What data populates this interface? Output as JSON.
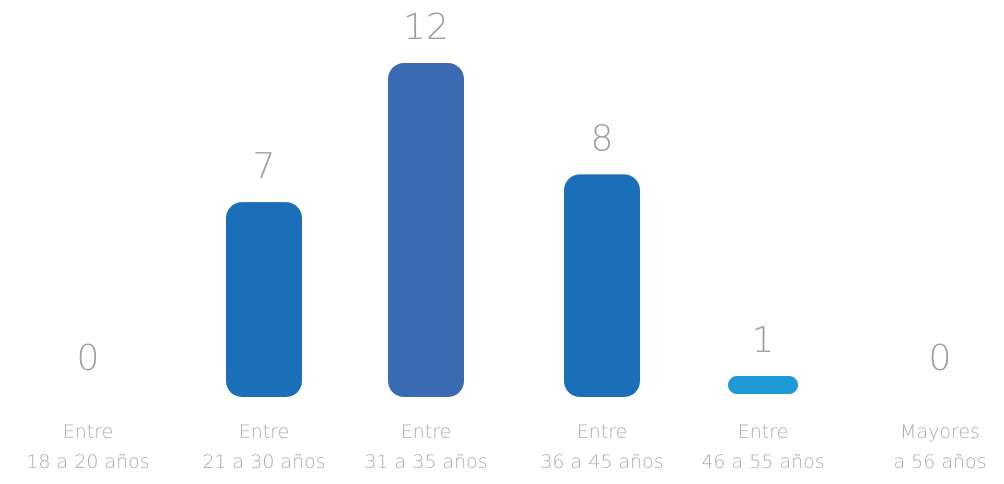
{
  "chart_data": {
    "type": "bar",
    "title": "",
    "xlabel": "",
    "ylabel": "",
    "ylim": [
      0,
      12
    ],
    "categories": [
      [
        "Entre",
        "18 a 20 años"
      ],
      [
        "Entre",
        "21 a 30 años"
      ],
      [
        "Entre",
        "31 a 35 años"
      ],
      [
        "Entre",
        "36 a 45 años"
      ],
      [
        "Entre",
        "46 a 55 años"
      ],
      [
        "Mayores",
        "a 56 años"
      ]
    ],
    "values": [
      0,
      7,
      12,
      8,
      1,
      0
    ],
    "value_labels": [
      "0",
      "7",
      "12",
      "8",
      "1",
      "0"
    ],
    "bar_colors": [
      "#1a6fb8",
      "#1a6fb8",
      "#3a6ab2",
      "#1a6fb8",
      "#1e9ad6",
      "#1a6fb8"
    ],
    "grid": false,
    "legend": "none"
  }
}
